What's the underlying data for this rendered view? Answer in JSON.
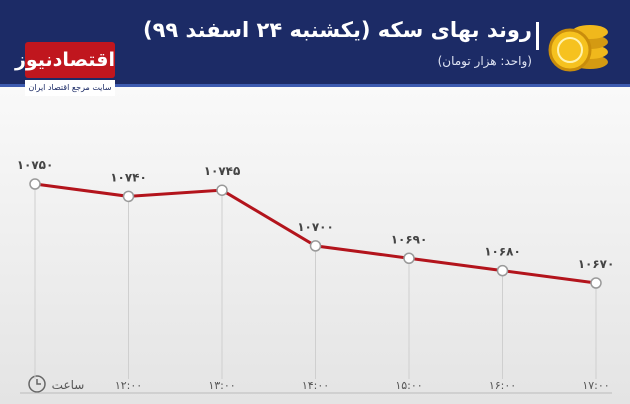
{
  "header": {
    "title": "روند بهای سکه (یکشنبه ۲۴ اسفند ۹۹)",
    "subtitle": "(واحد: هزار تومان)",
    "logo": "اقتصادنیوز",
    "logo_tagline": "سایت مرجع اقتصاد ایران"
  },
  "chart_data": {
    "type": "line",
    "x_label": "ساعت",
    "categories": [
      null,
      "۱۲:۰۰",
      "۱۳:۰۰",
      "۱۴:۰۰",
      "۱۵:۰۰",
      "۱۶:۰۰",
      "۱۷:۰۰"
    ],
    "values": [
      10750,
      10740,
      10745,
      10700,
      10690,
      10680,
      10670
    ],
    "value_labels": [
      "۱۰۷۵۰",
      "۱۰۷۴۰",
      "۱۰۷۴۵",
      "۱۰۷۰۰",
      "۱۰۶۹۰",
      "۱۰۶۸۰",
      "۱۰۶۷۰"
    ],
    "color": "#b3141c"
  }
}
